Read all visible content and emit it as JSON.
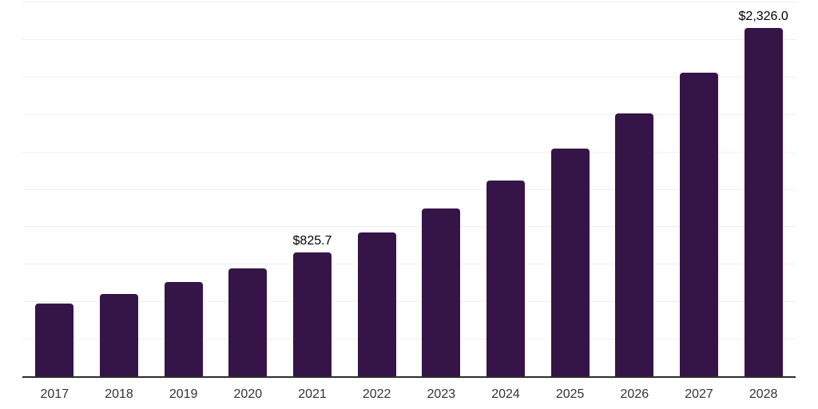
{
  "chart": {
    "background_color": "#ffffff",
    "bar_color": "#351548",
    "grid_color": "#efefef",
    "axis_line_color": "#2d2d2d",
    "tick_label_color": "#333333",
    "value_label_color": "#000000"
  },
  "chart_data": {
    "type": "bar",
    "title": "",
    "xlabel": "",
    "ylabel": "",
    "categories": [
      "2017",
      "2018",
      "2019",
      "2020",
      "2021",
      "2022",
      "2023",
      "2024",
      "2025",
      "2026",
      "2027",
      "2028"
    ],
    "values": [
      485,
      550,
      630,
      720,
      825.7,
      960,
      1120,
      1305,
      1520,
      1755,
      2025,
      2326.0
    ],
    "data_labels": [
      {
        "index": 4,
        "text": "$825.7"
      },
      {
        "index": 11,
        "text": "$2,326.0"
      }
    ],
    "ylim": [
      0,
      2500
    ],
    "grid_step": 250,
    "grid": true,
    "legend_position": "none",
    "y_axis_labels_visible": false
  }
}
